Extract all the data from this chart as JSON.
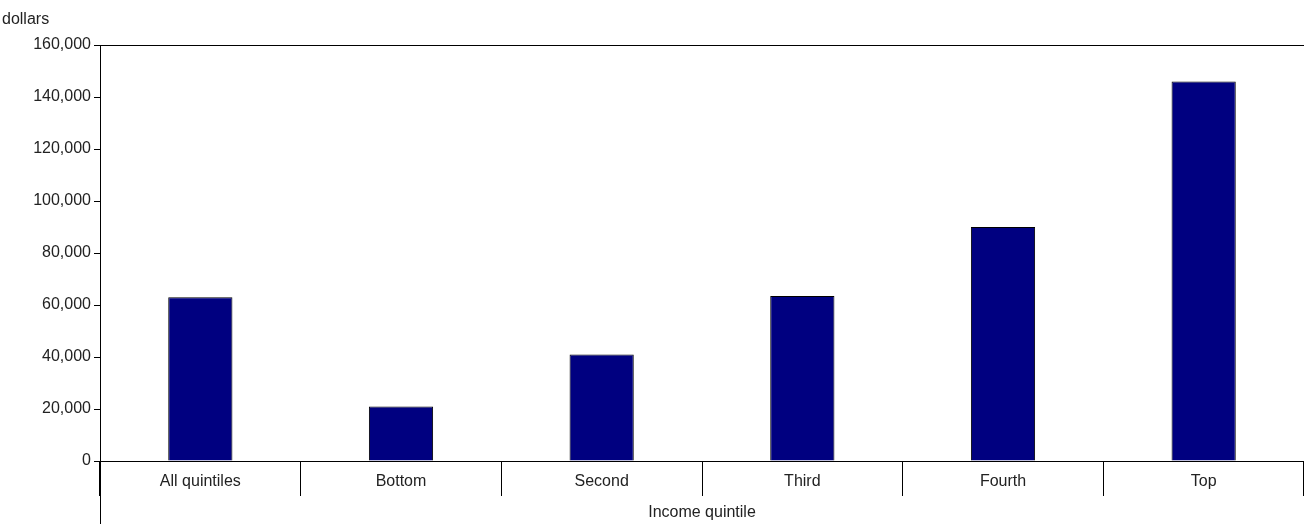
{
  "chart_data": {
    "type": "bar",
    "ylabel": "dollars",
    "xlabel": "Income quintile",
    "categories": [
      "All quintiles",
      "Bottom",
      "Second",
      "Third",
      "Fourth",
      "Top"
    ],
    "values": [
      63000,
      21000,
      41000,
      63500,
      90000,
      146000
    ],
    "color": "#000080",
    "ylim": [
      0,
      160000
    ],
    "yticks": [
      0,
      {
        "value": 20000,
        "label": "20,000"
      },
      {
        "value": 40000,
        "label": "40,000"
      },
      {
        "value": 60000,
        "label": "60,000"
      },
      {
        "value": 80000,
        "label": "80,000"
      },
      {
        "value": 100000,
        "label": "100,000"
      },
      {
        "value": 120000,
        "label": "120,000"
      },
      {
        "value": 140000,
        "label": "140,000"
      },
      {
        "value": 160000,
        "label": "160,000"
      }
    ],
    "grid": false,
    "legend": false
  }
}
